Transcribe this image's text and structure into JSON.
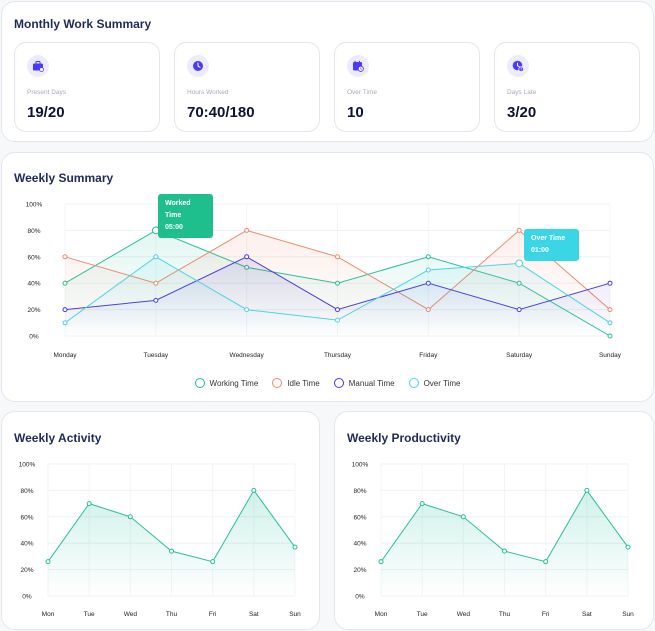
{
  "summary": {
    "title": "Monthly Work Summary",
    "stats": [
      {
        "label": "Present Days",
        "value": "19/20",
        "icon": "briefcase-icon"
      },
      {
        "label": "Hours Worked",
        "value": "70:40/180",
        "icon": "clock-icon"
      },
      {
        "label": "Over Time",
        "value": "10",
        "icon": "calendar-clock-icon"
      },
      {
        "label": "Days Late",
        "value": "3/20",
        "icon": "alert-clock-icon"
      }
    ]
  },
  "colors": {
    "accent": "#4a3aff",
    "working": "#26c09a",
    "idle": "#ee8a6f",
    "manual": "#4a3ad8",
    "over": "#4fd3e3"
  },
  "weekly_summary": {
    "title": "Weekly Summary",
    "tooltips": [
      {
        "title": "Worked Time",
        "value": "05:00"
      },
      {
        "title": "Over Time",
        "value": "01:00"
      }
    ],
    "legend": [
      "Working Time",
      "Idle Time",
      "Manual Time",
      "Over Time"
    ]
  },
  "activity": {
    "title": "Weekly Activity"
  },
  "productivity": {
    "title": "Weekly Productivity"
  },
  "chart_data": [
    {
      "type": "line",
      "title": "Weekly Summary",
      "categories": [
        "Monday",
        "Tuesday",
        "Wednesday",
        "Thursday",
        "Friday",
        "Saturday",
        "Sunday"
      ],
      "yticks": [
        "100%",
        "80%",
        "60%",
        "40%",
        "20%",
        "0%"
      ],
      "ylim": [
        0,
        100
      ],
      "series": [
        {
          "name": "Working Time",
          "values": [
            40,
            80,
            52,
            40,
            60,
            40,
            0
          ]
        },
        {
          "name": "Idle Time",
          "values": [
            60,
            40,
            80,
            60,
            20,
            80,
            20
          ]
        },
        {
          "name": "Manual Time",
          "values": [
            20,
            27,
            60,
            20,
            40,
            20,
            40
          ]
        },
        {
          "name": "Over Time",
          "values": [
            10,
            60,
            20,
            12,
            50,
            55,
            10
          ]
        }
      ],
      "legend": "bottom",
      "grid": true
    },
    {
      "type": "area",
      "title": "Weekly Activity",
      "categories": [
        "Mon",
        "Tue",
        "Wed",
        "Thu",
        "Fri",
        "Sat",
        "Sun"
      ],
      "yticks": [
        "100%",
        "80%",
        "60%",
        "40%",
        "20%",
        "0%"
      ],
      "ylim": [
        0,
        100
      ],
      "values": [
        26,
        70,
        60,
        34,
        26,
        80,
        37
      ],
      "grid": true
    },
    {
      "type": "area",
      "title": "Weekly Productivity",
      "categories": [
        "Mon",
        "Tue",
        "Wed",
        "Thu",
        "Fri",
        "Sat",
        "Sun"
      ],
      "yticks": [
        "100%",
        "80%",
        "60%",
        "40%",
        "20%",
        "0%"
      ],
      "ylim": [
        0,
        100
      ],
      "values": [
        26,
        70,
        60,
        34,
        26,
        80,
        37
      ],
      "grid": true
    }
  ]
}
